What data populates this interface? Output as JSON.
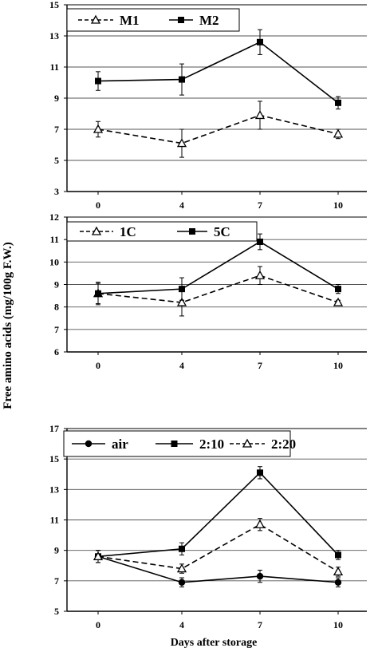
{
  "figure": {
    "ylabel": "Free amino acids (mg/100g F.W.)",
    "xlabel": "Days after storage"
  },
  "chart_data": [
    {
      "type": "line",
      "title": "",
      "categories": [
        "0",
        "4",
        "7",
        "10"
      ],
      "yticks": [
        "15",
        "13",
        "11",
        "9",
        "7",
        "5",
        "3"
      ],
      "ylim": [
        3,
        15
      ],
      "grid": true,
      "legend_position": "top-left",
      "series": [
        {
          "name": "M1",
          "values": [
            7.0,
            6.1,
            7.9,
            6.7
          ],
          "errors": [
            0.5,
            0.9,
            0.9,
            0.3
          ],
          "marker": "triangle-open",
          "line": "dashed"
        },
        {
          "name": "M2",
          "values": [
            10.1,
            10.2,
            12.6,
            8.7
          ],
          "errors": [
            0.6,
            1.0,
            0.8,
            0.4
          ],
          "marker": "square-filled",
          "line": "solid"
        }
      ]
    },
    {
      "type": "line",
      "title": "",
      "categories": [
        "0",
        "4",
        "7",
        "10"
      ],
      "yticks": [
        "12",
        "11",
        "10",
        "9",
        "8",
        "7",
        "6"
      ],
      "ylim": [
        6,
        12
      ],
      "grid": true,
      "legend_position": "top-left",
      "series": [
        {
          "name": "1C",
          "values": [
            8.6,
            8.2,
            9.4,
            8.2
          ],
          "errors": [
            0.5,
            0.6,
            0.4,
            0.1
          ],
          "marker": "triangle-open",
          "line": "dashed"
        },
        {
          "name": "5C",
          "values": [
            8.6,
            8.8,
            10.9,
            8.8
          ],
          "errors": [
            0.45,
            0.5,
            0.35,
            0.2
          ],
          "marker": "square-filled",
          "line": "solid"
        }
      ]
    },
    {
      "type": "line",
      "title": "",
      "categories": [
        "0",
        "4",
        "7",
        "10"
      ],
      "yticks": [
        "17",
        "15",
        "13",
        "11",
        "9",
        "7",
        "5"
      ],
      "ylim": [
        5,
        17
      ],
      "grid": true,
      "legend_position": "top-left",
      "series": [
        {
          "name": "air",
          "values": [
            8.6,
            6.9,
            7.3,
            6.9
          ],
          "errors": [
            0.4,
            0.3,
            0.4,
            0.3
          ],
          "marker": "circle-filled",
          "line": "solid"
        },
        {
          "name": "2:10",
          "values": [
            8.6,
            9.1,
            14.1,
            8.7
          ],
          "errors": [
            0.4,
            0.4,
            0.4,
            0.3
          ],
          "marker": "square-filled",
          "line": "solid"
        },
        {
          "name": "2:20",
          "values": [
            8.6,
            7.8,
            10.7,
            7.6
          ],
          "errors": [
            0.4,
            0.3,
            0.4,
            0.3
          ],
          "marker": "triangle-open",
          "line": "dashed"
        }
      ]
    }
  ]
}
